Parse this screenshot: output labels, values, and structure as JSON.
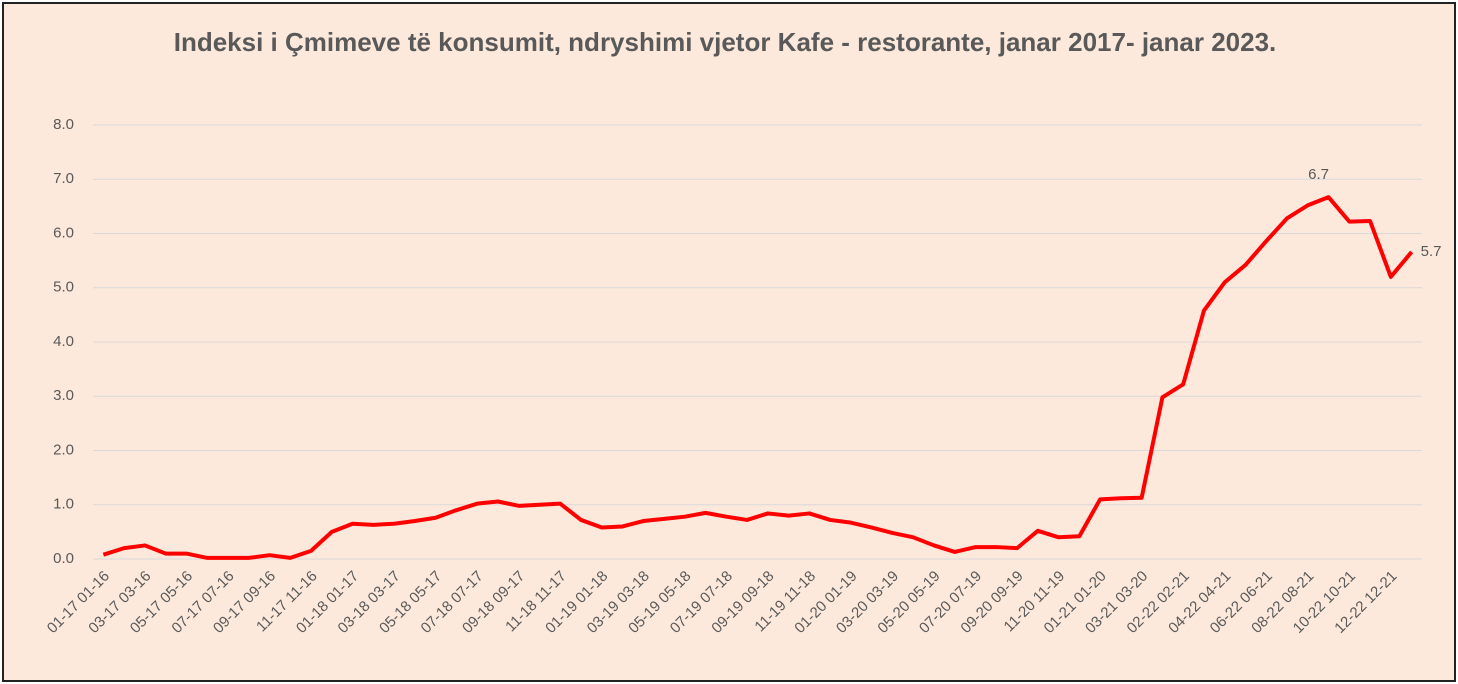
{
  "chart_data": {
    "type": "line",
    "title": "Indeksi i Çmimeve të konsumit, ndryshimi vjetor Kafe - restorante, janar 2017- janar 2023.",
    "categories": [
      "01-17 01-16",
      null,
      "03-17 03-16",
      null,
      "05-17 05-16",
      null,
      "07-17 07-16",
      null,
      "09-17 09-16",
      null,
      "11-17 11-16",
      null,
      "01-18 01-17",
      null,
      "03-18 03-17",
      null,
      "05-18 05-17",
      null,
      "07-18 07-17",
      null,
      "09-18 09-17",
      null,
      "11-18 11-17",
      null,
      "01-19 01-18",
      null,
      "03-19 03-18",
      null,
      "05-19 05-18",
      null,
      "07-19 07-18",
      null,
      "09-19 09-18",
      null,
      "11-19 11-18",
      null,
      "01-20 01-19",
      null,
      "03-20 03-19",
      null,
      "05-20 05-19",
      null,
      "07-20 07-19",
      null,
      "09-20 09-19",
      null,
      "11-20 11-19",
      null,
      "01-21 01-20",
      null,
      "03-21 03-20",
      null,
      "02-22 02-21",
      null,
      "04-22 04-21",
      null,
      "06-22 06-21",
      null,
      "08-22 08-21",
      null,
      "10-22 10-21",
      null,
      "12-22 12-21",
      null
    ],
    "series": [
      {
        "color": "#ff0000",
        "values": [
          0.08,
          0.2,
          0.25,
          0.1,
          0.1,
          0.02,
          0.02,
          0.02,
          0.07,
          0.02,
          0.15,
          0.5,
          0.65,
          0.63,
          0.65,
          0.7,
          0.76,
          0.9,
          1.02,
          1.06,
          0.98,
          1.0,
          1.02,
          0.72,
          0.58,
          0.6,
          0.7,
          0.74,
          0.78,
          0.85,
          0.78,
          0.72,
          0.84,
          0.8,
          0.84,
          0.72,
          0.67,
          0.58,
          0.48,
          0.4,
          0.25,
          0.13,
          0.22,
          0.22,
          0.2,
          0.52,
          0.4,
          0.42,
          1.1,
          1.12,
          1.13,
          2.98,
          3.22,
          4.58,
          5.1,
          5.42,
          5.86,
          6.28,
          6.52,
          6.67,
          6.22,
          6.23,
          5.2,
          5.66
        ],
        "value_labels": [
          null,
          null,
          null,
          null,
          null,
          null,
          null,
          null,
          null,
          null,
          null,
          null,
          null,
          null,
          null,
          null,
          null,
          null,
          null,
          null,
          null,
          null,
          null,
          null,
          null,
          null,
          null,
          null,
          null,
          null,
          null,
          null,
          null,
          null,
          null,
          null,
          null,
          null,
          null,
          null,
          null,
          null,
          null,
          null,
          null,
          null,
          null,
          null,
          null,
          null,
          null,
          null,
          null,
          null,
          null,
          null,
          null,
          null,
          null,
          "6.7",
          null,
          null,
          null,
          "5.7"
        ]
      }
    ],
    "ylim": [
      0,
      8
    ],
    "yticks": [
      {
        "value": 0,
        "label": "0.0"
      },
      {
        "value": 1,
        "label": "1.0"
      },
      {
        "value": 2,
        "label": "2.0"
      },
      {
        "value": 3,
        "label": "3.0"
      },
      {
        "value": 4,
        "label": "4.0"
      },
      {
        "value": 5,
        "label": "5.0"
      },
      {
        "value": 6,
        "label": "6.0"
      },
      {
        "value": 7,
        "label": "7.0"
      },
      {
        "value": 8,
        "label": "8.0"
      }
    ],
    "grid": true
  }
}
